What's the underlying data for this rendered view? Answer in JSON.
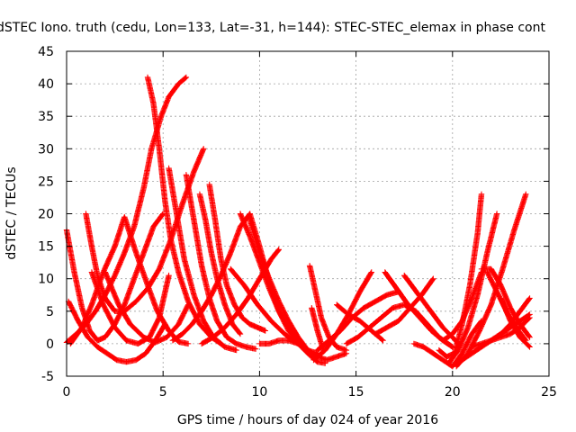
{
  "chart_data": {
    "type": "scatter",
    "title": "dSTEC Iono. truth (cedu, Lon=133, Lat=-31, h=144): STEC-STEC_elemax in phase cont",
    "xlabel": "GPS time / hours of day 024 of year 2016",
    "ylabel": "dSTEC  / TECUs",
    "xlim": [
      0,
      25
    ],
    "ylim": [
      -5,
      45
    ],
    "x_ticks": [
      "0",
      "5",
      "10",
      "15",
      "20",
      "25"
    ],
    "y_ticks": [
      "-5",
      "0",
      "5",
      "10",
      "15",
      "20",
      "25",
      "30",
      "35",
      "40",
      "45"
    ],
    "grid": true,
    "marker": "+",
    "color": "#ff0000",
    "series": [
      {
        "x": [
          0.0,
          0.5,
          1.0,
          1.5,
          2.0,
          2.5,
          3.0,
          3.5,
          4.0,
          4.4,
          4.9,
          5.3,
          5.8,
          6.2
        ],
        "y": [
          0.2,
          1.5,
          3.0,
          5.0,
          7.5,
          10.5,
          14.0,
          18.0,
          24.0,
          30.0,
          35.0,
          38.0,
          40.0,
          41.0
        ]
      },
      {
        "x": [
          0.0,
          0.4,
          0.8,
          1.2,
          1.6,
          2.0,
          2.5,
          3.0,
          3.5,
          4.0,
          4.5,
          5.0
        ],
        "y": [
          17.5,
          11.0,
          5.5,
          2.0,
          0.5,
          1.0,
          3.0,
          6.0,
          10.0,
          14.0,
          18.0,
          20.0
        ]
      },
      {
        "x": [
          0.1,
          0.6,
          1.1,
          1.6,
          2.1,
          2.6,
          3.1,
          3.6,
          4.1,
          4.6,
          5.1
        ],
        "y": [
          6.5,
          3.5,
          1.0,
          -0.5,
          -1.5,
          -2.5,
          -2.8,
          -2.5,
          -1.5,
          0.5,
          3.0
        ]
      },
      {
        "x": [
          0.2,
          0.8,
          1.3,
          1.9,
          2.5,
          3.0,
          3.6,
          4.2,
          4.7,
          5.3,
          5.8,
          6.3
        ],
        "y": [
          0.0,
          2.5,
          6.0,
          11.0,
          15.0,
          19.5,
          14.0,
          9.0,
          5.0,
          2.0,
          0.3,
          0.0
        ]
      },
      {
        "x": [
          1.0,
          1.3,
          1.6,
          2.0,
          2.5,
          3.0,
          3.6,
          4.2,
          4.8,
          5.4,
          6.0,
          6.6,
          7.1
        ],
        "y": [
          20.0,
          15.0,
          10.5,
          7.0,
          5.0,
          5.0,
          6.5,
          8.5,
          11.5,
          16.0,
          21.5,
          26.5,
          30.0
        ]
      },
      {
        "x": [
          1.3,
          1.9,
          2.5,
          3.1,
          3.7,
          4.3,
          4.8,
          5.3
        ],
        "y": [
          11.0,
          6.0,
          2.5,
          0.5,
          0.0,
          1.0,
          4.0,
          10.5
        ]
      },
      {
        "x": [
          2.0,
          2.7,
          3.3,
          4.0,
          4.6,
          5.2,
          5.8,
          6.3
        ],
        "y": [
          11.0,
          6.0,
          3.0,
          1.0,
          0.2,
          1.0,
          3.0,
          6.0
        ]
      },
      {
        "x": [
          4.2,
          4.5,
          4.8,
          5.1,
          5.4,
          5.8,
          6.3,
          6.9,
          7.5,
          8.0
        ],
        "y": [
          41.0,
          37.0,
          30.0,
          22.0,
          16.0,
          11.0,
          6.5,
          3.0,
          1.0,
          0.0
        ]
      },
      {
        "x": [
          5.3,
          5.7,
          6.1,
          6.6,
          7.1,
          7.6,
          8.2,
          8.8
        ],
        "y": [
          27.0,
          20.0,
          13.0,
          7.5,
          3.5,
          1.0,
          -0.5,
          -1.0
        ]
      },
      {
        "x": [
          6.2,
          6.6,
          7.0,
          7.4,
          7.8,
          8.3,
          8.8,
          9.3,
          9.8
        ],
        "y": [
          26.0,
          19.0,
          12.0,
          7.0,
          3.5,
          1.0,
          0.0,
          -0.5,
          -0.8
        ]
      },
      {
        "x": [
          6.9,
          7.2,
          7.5,
          7.8,
          8.2,
          8.6,
          9.0
        ],
        "y": [
          23.0,
          19.0,
          14.0,
          10.0,
          6.0,
          3.0,
          1.5
        ]
      },
      {
        "x": [
          7.4,
          7.7,
          8.0,
          8.3,
          8.7,
          9.1,
          9.5,
          9.9,
          10.3
        ],
        "y": [
          24.5,
          19.0,
          13.0,
          9.0,
          6.0,
          4.0,
          3.0,
          2.5,
          2.0
        ]
      },
      {
        "x": [
          5.5,
          6.0,
          6.5,
          7.0,
          7.5,
          8.0,
          8.5,
          9.0,
          9.5,
          10.0,
          10.5,
          11.0,
          11.5,
          12.0
        ],
        "y": [
          0.5,
          1.5,
          3.0,
          5.0,
          7.5,
          10.5,
          14.0,
          18.0,
          20.0,
          15.0,
          9.5,
          5.0,
          2.0,
          0.5
        ]
      },
      {
        "x": [
          9.0,
          9.5,
          10.0,
          10.5,
          11.0,
          11.5,
          12.0,
          12.5
        ],
        "y": [
          20.0,
          16.5,
          12.5,
          8.5,
          5.0,
          2.5,
          0.5,
          -1.0
        ]
      },
      {
        "x": [
          9.5,
          10.0,
          10.5,
          11.0,
          11.5,
          12.0,
          12.5,
          13.0
        ],
        "y": [
          19.0,
          14.0,
          10.0,
          6.5,
          3.5,
          1.0,
          -1.0,
          -2.0
        ]
      },
      {
        "x": [
          7.0,
          7.6,
          8.2,
          8.8,
          9.4,
          10.0,
          10.6,
          11.0
        ],
        "y": [
          0.0,
          1.0,
          2.5,
          4.5,
          7.0,
          10.0,
          13.0,
          14.5
        ]
      },
      {
        "x": [
          8.5,
          9.2,
          9.9,
          10.6,
          11.3,
          12.0,
          12.5,
          13.0
        ],
        "y": [
          11.5,
          9.0,
          6.0,
          3.5,
          1.5,
          0.0,
          -1.0,
          -1.5
        ]
      },
      {
        "x": [
          10.0,
          10.5,
          11.0,
          11.5,
          12.0,
          12.5,
          13.0,
          13.5,
          14.0,
          14.5
        ],
        "y": [
          0.0,
          0.0,
          0.5,
          0.5,
          0.0,
          -1.0,
          -2.0,
          -2.5,
          -2.0,
          -1.5
        ]
      },
      {
        "x": [
          11.5,
          12.0,
          12.5,
          13.0,
          13.4
        ],
        "y": [
          1.0,
          0.0,
          -1.5,
          -2.8,
          -3.0
        ]
      },
      {
        "x": [
          12.6,
          12.9,
          13.2,
          13.6,
          14.0,
          14.5
        ],
        "y": [
          12.0,
          8.0,
          4.0,
          1.0,
          -0.5,
          -1.0
        ]
      },
      {
        "x": [
          12.7,
          13.0,
          13.3
        ],
        "y": [
          5.5,
          2.0,
          -1.0
        ]
      },
      {
        "x": [
          12.8,
          13.4,
          14.0,
          14.6,
          15.2,
          15.8
        ],
        "y": [
          -2.5,
          -1.0,
          1.5,
          4.5,
          8.0,
          11.0
        ]
      },
      {
        "x": [
          13.0,
          13.6,
          14.2,
          14.8,
          15.4,
          16.0,
          16.6,
          17.2
        ],
        "y": [
          -1.0,
          0.5,
          2.0,
          4.0,
          5.5,
          6.5,
          7.5,
          8.0
        ]
      },
      {
        "x": [
          14.0,
          14.6,
          15.2,
          15.8,
          16.4
        ],
        "y": [
          6.0,
          4.5,
          3.5,
          2.0,
          0.5
        ]
      },
      {
        "x": [
          14.5,
          15.1,
          15.7,
          16.3,
          16.9,
          17.5,
          18.1,
          18.7,
          19.3,
          20.0
        ],
        "y": [
          0.0,
          1.0,
          2.5,
          4.0,
          5.5,
          6.0,
          5.0,
          3.0,
          1.0,
          -0.5
        ]
      },
      {
        "x": [
          16.5,
          17.1,
          17.7,
          18.3,
          18.9,
          19.5,
          20.0
        ],
        "y": [
          11.0,
          8.5,
          6.0,
          4.0,
          2.0,
          0.5,
          -0.5
        ]
      },
      {
        "x": [
          16.0,
          16.6,
          17.2,
          17.8,
          18.4,
          19.0
        ],
        "y": [
          1.5,
          2.5,
          3.5,
          5.5,
          7.5,
          10.0
        ]
      },
      {
        "x": [
          17.5,
          18.0,
          18.5,
          19.0,
          19.5,
          20.0,
          20.3
        ],
        "y": [
          10.5,
          8.5,
          6.5,
          4.5,
          2.5,
          1.0,
          0.0
        ]
      },
      {
        "x": [
          18.0,
          18.5,
          19.0,
          19.5,
          20.0,
          20.5,
          21.0,
          21.5
        ],
        "y": [
          0.0,
          -0.5,
          -1.5,
          -2.5,
          -3.5,
          -1.5,
          1.5,
          3.5
        ]
      },
      {
        "x": [
          19.5,
          20.0,
          20.5,
          21.0,
          21.5
        ],
        "y": [
          0.5,
          1.5,
          3.5,
          7.0,
          11.0
        ]
      },
      {
        "x": [
          19.3,
          19.7,
          20.1,
          20.5,
          20.9,
          21.3,
          21.5
        ],
        "y": [
          -1.0,
          -2.0,
          -1.5,
          3.0,
          9.0,
          17.0,
          23.0
        ]
      },
      {
        "x": [
          19.8,
          20.3,
          20.8,
          21.3,
          21.8,
          22.3
        ],
        "y": [
          -3.0,
          -1.0,
          2.5,
          7.5,
          14.0,
          20.0
        ]
      },
      {
        "x": [
          20.2,
          20.8,
          21.4,
          22.0,
          22.6,
          23.2,
          23.8
        ],
        "y": [
          -3.5,
          -1.5,
          2.0,
          6.0,
          11.5,
          17.5,
          23.0
        ]
      },
      {
        "x": [
          20.5,
          21.0,
          21.5,
          22.0,
          22.5,
          23.0,
          23.5,
          24.0
        ],
        "y": [
          -2.5,
          -1.5,
          -0.5,
          0.5,
          1.5,
          3.0,
          5.0,
          7.0
        ]
      },
      {
        "x": [
          21.5,
          22.0,
          22.5,
          23.0,
          23.5,
          24.0
        ],
        "y": [
          11.5,
          11.5,
          9.0,
          5.5,
          3.0,
          1.0
        ]
      },
      {
        "x": [
          21.8,
          22.3,
          22.8,
          23.3,
          23.8
        ],
        "y": [
          11.0,
          8.0,
          5.0,
          2.5,
          0.5
        ]
      },
      {
        "x": [
          22.0,
          22.5,
          23.0,
          23.5,
          24.0
        ],
        "y": [
          0.5,
          1.0,
          1.5,
          2.5,
          4.0
        ]
      },
      {
        "x": [
          21.0,
          21.5,
          22.0,
          22.5,
          23.0,
          23.5,
          24.0
        ],
        "y": [
          -0.5,
          0.0,
          0.5,
          1.5,
          2.5,
          3.5,
          4.5
        ]
      },
      {
        "x": [
          22.5,
          23.0,
          23.5,
          24.0
        ],
        "y": [
          7.0,
          3.5,
          1.0,
          -0.5
        ]
      }
    ]
  }
}
